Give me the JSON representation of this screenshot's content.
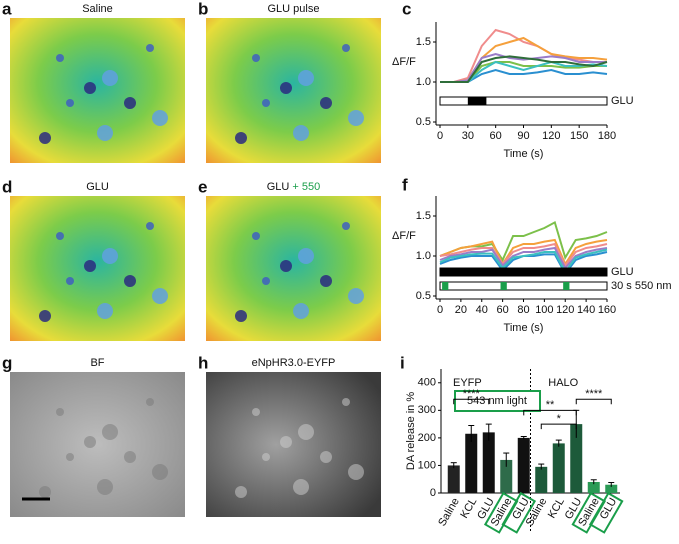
{
  "images": [
    {
      "letter": "a",
      "title": "Saline"
    },
    {
      "letter": "b",
      "title": "GLU pulse"
    },
    {
      "letter": "d",
      "title": "GLU"
    },
    {
      "letter": "e",
      "title": "GLU",
      "title_extra": "+ 550"
    },
    {
      "letter": "g",
      "title": "BF"
    },
    {
      "letter": "h",
      "title": "eNpHR3.0-EYFP"
    }
  ],
  "chart_data": [
    {
      "letter": "c",
      "type": "line",
      "x": [
        0,
        15,
        30,
        45,
        60,
        75,
        90,
        105,
        120,
        135,
        150,
        165,
        180
      ],
      "xlim": [
        0,
        180
      ],
      "xticks": [
        0,
        30,
        60,
        90,
        120,
        150,
        180
      ],
      "ylim": [
        0.5,
        1.75
      ],
      "yticks": [
        0.5,
        {
          "value": 1,
          "label": "1.0"
        },
        1.5
      ],
      "xlabel": "Time (s)",
      "ylabel": "ΔF/F",
      "series": [
        {
          "color": "#f08c8c",
          "values": [
            1.0,
            1.0,
            1.05,
            1.45,
            1.65,
            1.6,
            1.5,
            1.45,
            1.35,
            1.3,
            1.28,
            1.25,
            1.25
          ]
        },
        {
          "color": "#f5a03c",
          "values": [
            1.0,
            1.0,
            1.02,
            1.3,
            1.45,
            1.5,
            1.55,
            1.45,
            1.35,
            1.32,
            1.3,
            1.3,
            1.28
          ]
        },
        {
          "color": "#9a7cc8",
          "values": [
            1.0,
            1.0,
            1.02,
            1.3,
            1.35,
            1.3,
            1.28,
            1.3,
            1.32,
            1.3,
            1.25,
            1.25,
            1.25
          ]
        },
        {
          "color": "#7cc04a",
          "values": [
            1.0,
            1.0,
            1.0,
            1.2,
            1.25,
            1.25,
            1.2,
            1.2,
            1.2,
            1.18,
            1.18,
            1.2,
            1.2
          ]
        },
        {
          "color": "#2a8fd0",
          "values": [
            1.0,
            1.0,
            1.0,
            1.1,
            1.15,
            1.1,
            1.1,
            1.12,
            1.15,
            1.1,
            1.1,
            1.12,
            1.1
          ]
        },
        {
          "color": "#3cc0c0",
          "values": [
            1.0,
            1.0,
            1.0,
            1.15,
            1.25,
            1.2,
            1.15,
            1.2,
            1.25,
            1.2,
            1.2,
            1.22,
            1.2
          ]
        },
        {
          "color": "#2f6e3a",
          "values": [
            1.0,
            1.0,
            1.0,
            1.25,
            1.3,
            1.32,
            1.3,
            1.28,
            1.25,
            1.25,
            1.22,
            1.2,
            1.25
          ]
        }
      ],
      "stimuli": [
        {
          "label": "GLU",
          "color": "#000000",
          "segments": [
            [
              30,
              50
            ]
          ]
        }
      ]
    },
    {
      "letter": "f",
      "type": "line",
      "x": [
        0,
        10,
        20,
        30,
        40,
        50,
        60,
        70,
        80,
        90,
        100,
        110,
        120,
        130,
        140,
        150,
        160
      ],
      "xlim": [
        0,
        160
      ],
      "xticks": [
        0,
        20,
        40,
        60,
        80,
        100,
        120,
        140,
        160
      ],
      "ylim": [
        0.5,
        1.75
      ],
      "yticks": [
        0.5,
        {
          "value": 1,
          "label": "1.0"
        },
        1.5
      ],
      "xlabel": "Time (s)",
      "ylabel": "ΔF/F",
      "series": [
        {
          "color": "#7cc04a",
          "values": [
            1.0,
            1.05,
            1.1,
            1.12,
            1.12,
            1.15,
            0.95,
            1.25,
            1.25,
            1.3,
            1.35,
            1.42,
            0.98,
            1.2,
            1.22,
            1.25,
            1.3
          ]
        },
        {
          "color": "#f5a03c",
          "values": [
            1.0,
            1.05,
            1.1,
            1.12,
            1.15,
            1.18,
            0.9,
            1.1,
            1.15,
            1.15,
            1.18,
            1.2,
            0.9,
            1.1,
            1.15,
            1.18,
            1.2
          ]
        },
        {
          "color": "#f08c8c",
          "values": [
            1.0,
            1.02,
            1.05,
            1.08,
            1.1,
            1.1,
            0.9,
            1.05,
            1.1,
            1.1,
            1.12,
            1.15,
            0.88,
            1.05,
            1.1,
            1.12,
            1.15
          ]
        },
        {
          "color": "#9a7cc8",
          "values": [
            0.95,
            1.0,
            1.02,
            1.05,
            1.05,
            1.08,
            0.88,
            1.0,
            1.05,
            1.05,
            1.08,
            1.1,
            0.85,
            1.0,
            1.05,
            1.08,
            1.1
          ]
        },
        {
          "color": "#2a8fd0",
          "values": [
            0.9,
            0.95,
            0.98,
            1.0,
            1.0,
            1.0,
            0.82,
            0.95,
            1.0,
            1.0,
            1.02,
            1.02,
            0.78,
            0.95,
            1.0,
            1.02,
            1.05
          ]
        },
        {
          "color": "#3cc0c0",
          "values": [
            0.92,
            0.98,
            1.0,
            1.02,
            1.03,
            1.03,
            0.85,
            0.98,
            1.0,
            1.02,
            1.05,
            1.05,
            0.8,
            0.98,
            1.02,
            1.05,
            1.08
          ]
        }
      ],
      "stimuli": [
        {
          "label": "GLU",
          "color": "#000000",
          "segments": [
            [
              0,
              160
            ]
          ]
        },
        {
          "label": "30 s 550 nm",
          "color": "#1a9e4a",
          "segments": [
            [
              2,
              8
            ],
            [
              58,
              64
            ],
            [
              118,
              124
            ]
          ]
        }
      ]
    },
    {
      "letter": "i",
      "type": "bar",
      "categories": [
        "Saline",
        "KCL",
        "GLU",
        "Saline",
        "GLU",
        "Saline",
        "KCL",
        "GLU",
        "Saline",
        "GLU"
      ],
      "values": [
        100,
        215,
        220,
        120,
        200,
        95,
        180,
        250,
        40,
        30
      ],
      "errors": [
        10,
        30,
        30,
        25,
        5,
        10,
        12,
        50,
        8,
        8
      ],
      "colors": [
        "#222222",
        "#111111",
        "#111111",
        "#2e6b4a",
        "#111111",
        "#1d5a3a",
        "#1d5a3a",
        "#1d5a3a",
        "#2a9a55",
        "#2a9a55"
      ],
      "boxed": [
        false,
        false,
        false,
        true,
        true,
        false,
        false,
        false,
        true,
        true
      ],
      "ylim": [
        0,
        450
      ],
      "yticks": [
        0,
        100,
        200,
        300,
        400
      ],
      "ylabel": "DA release in %",
      "groups": [
        "EYFP",
        "HALO"
      ],
      "legend": "543 nm light",
      "legend_color": "#1a9e4a",
      "significance": [
        "****",
        "**",
        "*",
        "****"
      ]
    }
  ]
}
